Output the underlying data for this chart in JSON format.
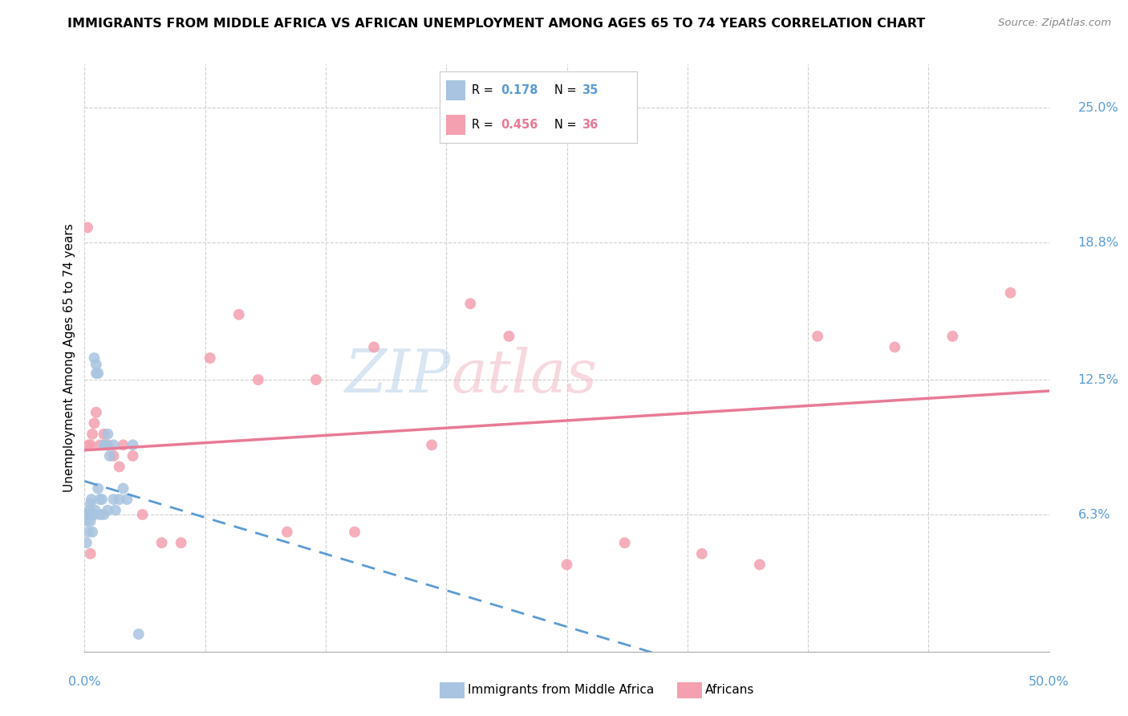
{
  "title": "IMMIGRANTS FROM MIDDLE AFRICA VS AFRICAN UNEMPLOYMENT AMONG AGES 65 TO 74 YEARS CORRELATION CHART",
  "source": "Source: ZipAtlas.com",
  "ylabel": "Unemployment Among Ages 65 to 74 years",
  "ylabel_values": [
    25.0,
    18.8,
    12.5,
    6.3
  ],
  "xlim": [
    0.0,
    50.0
  ],
  "ylim": [
    0.0,
    27.0
  ],
  "y_min_display": 0.0,
  "y_max_display": 25.0,
  "series1_label": "Immigrants from Middle Africa",
  "series1_color": "#a8c4e0",
  "series1_line_color": "#5b9bd5",
  "series1_R": "0.178",
  "series1_N": "35",
  "series2_label": "Africans",
  "series2_color": "#f4a0b0",
  "series2_line_color": "#e87a96",
  "series2_R": "0.456",
  "series2_N": "36",
  "blue_x": [
    0.1,
    0.15,
    0.2,
    0.25,
    0.3,
    0.35,
    0.4,
    0.5,
    0.55,
    0.6,
    0.7,
    0.8,
    0.9,
    1.0,
    1.1,
    1.2,
    1.3,
    1.5,
    1.6,
    1.8,
    2.0,
    2.2,
    2.5,
    0.1,
    0.2,
    0.3,
    0.4,
    0.5,
    0.6,
    0.7,
    0.8,
    1.0,
    1.2,
    1.5,
    2.8
  ],
  "blue_y": [
    6.3,
    6.0,
    5.5,
    6.5,
    6.8,
    7.0,
    6.3,
    13.5,
    6.5,
    12.8,
    7.5,
    7.0,
    7.0,
    9.5,
    9.5,
    10.0,
    9.0,
    9.5,
    6.5,
    7.0,
    7.5,
    7.0,
    9.5,
    5.0,
    6.3,
    6.0,
    5.5,
    6.3,
    13.2,
    12.8,
    6.3,
    6.3,
    6.5,
    7.0,
    0.8
  ],
  "pink_x": [
    0.1,
    0.15,
    0.2,
    0.3,
    0.4,
    0.5,
    0.6,
    0.8,
    1.0,
    1.2,
    1.5,
    1.8,
    2.0,
    2.5,
    3.0,
    4.0,
    5.0,
    6.5,
    8.0,
    9.0,
    10.5,
    12.0,
    14.0,
    15.0,
    18.0,
    20.0,
    22.0,
    25.0,
    28.0,
    32.0,
    35.0,
    38.0,
    42.0,
    45.0,
    48.0,
    0.3
  ],
  "pink_y": [
    6.3,
    19.5,
    9.5,
    9.5,
    10.0,
    10.5,
    11.0,
    9.5,
    10.0,
    9.5,
    9.0,
    8.5,
    9.5,
    9.0,
    6.3,
    5.0,
    5.0,
    13.5,
    15.5,
    12.5,
    5.5,
    12.5,
    5.5,
    14.0,
    9.5,
    16.0,
    14.5,
    4.0,
    5.0,
    4.5,
    4.0,
    14.5,
    14.0,
    14.5,
    16.5,
    4.5
  ]
}
